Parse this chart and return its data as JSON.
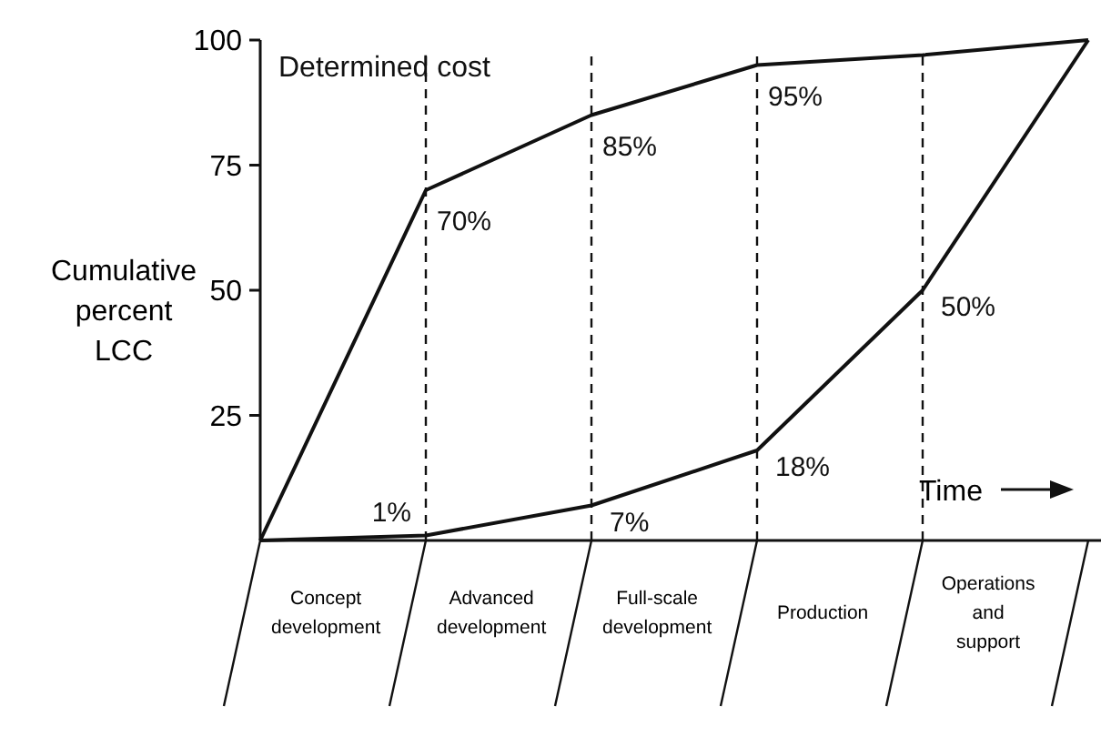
{
  "chart_data": {
    "type": "line",
    "ylabel": "Cumulative percent LCC",
    "xlabel": "Time",
    "categories": [
      null,
      null,
      null,
      null,
      null,
      null
    ],
    "ylim": [
      0,
      100
    ],
    "yticks": [
      25,
      50,
      75,
      100
    ],
    "annotations": [
      "Concept development",
      "Advanced development",
      "Full-scale development",
      "Production",
      "Operations and support"
    ],
    "series": [
      {
        "name": "Determined cost",
        "color": "#111111",
        "values": [
          0,
          70,
          85,
          95,
          97,
          100
        ],
        "value_labels": [
          null,
          "70%",
          "85%",
          "95%",
          null,
          null
        ]
      },
      {
        "color": "#111111",
        "values": [
          0,
          1,
          7,
          18,
          50,
          100
        ],
        "value_labels": [
          null,
          "1%",
          "7%",
          "18%",
          "50%",
          null
        ]
      }
    ],
    "grid": "x",
    "marker": "none",
    "line_style": "solid"
  }
}
